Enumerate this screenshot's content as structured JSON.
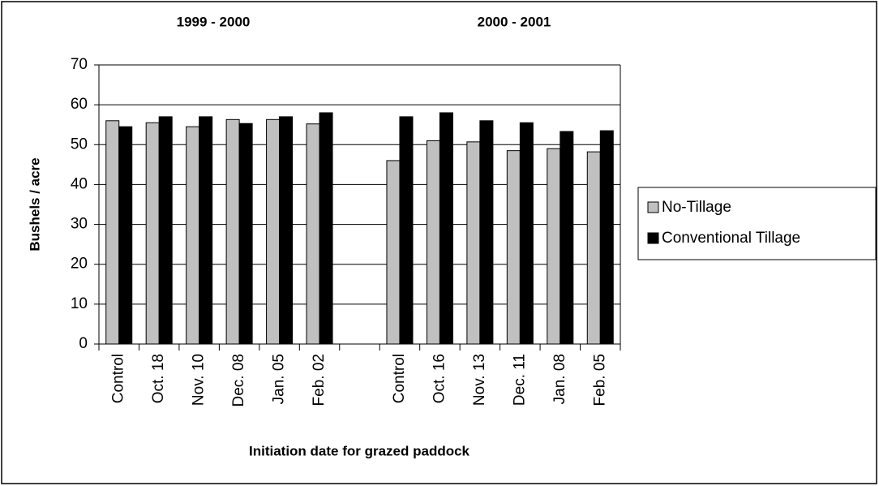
{
  "chart_data": {
    "type": "bar",
    "annotations": [
      "1999 - 2000",
      "2000 - 2001"
    ],
    "ylabel": "Bushels / acre",
    "xlabel": "Initiation date for grazed paddock",
    "categories": [
      "Control",
      "Oct. 18",
      "Nov. 10",
      "Dec. 08",
      "Jan. 05",
      "Feb. 02",
      null,
      "Control",
      "Oct. 16",
      "Nov. 13",
      "Dec. 11",
      "Jan. 08",
      "Feb. 05"
    ],
    "series": [
      {
        "name": "No-Tillage",
        "color": "#c0c0c0",
        "values": [
          56,
          55.5,
          54.5,
          56.3,
          56.3,
          55.2,
          null,
          46,
          51,
          50.7,
          48.5,
          49,
          48.2
        ]
      },
      {
        "name": "Conventional Tillage",
        "color": "#000000",
        "values": [
          54.5,
          57,
          57,
          55.3,
          57,
          58,
          null,
          57,
          58,
          56,
          55.5,
          53.3,
          53.5
        ]
      }
    ],
    "ylim": [
      0,
      70
    ],
    "yticks": [
      0,
      10,
      20,
      30,
      40,
      50,
      60,
      70
    ],
    "grid": true,
    "legend": "right"
  }
}
